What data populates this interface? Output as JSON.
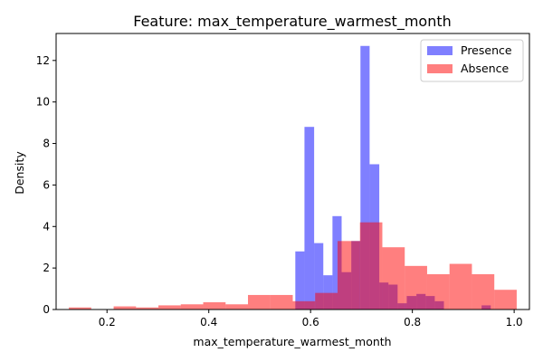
{
  "chart_data": {
    "type": "histogram",
    "title": "Feature: max_temperature_warmest_month",
    "xlabel": "max_temperature_warmest_month",
    "ylabel": "Density",
    "xlim": [
      0.1,
      1.03
    ],
    "ylim": [
      0,
      13.3
    ],
    "xticks": [
      "0.2",
      "0.4",
      "0.6",
      "0.8",
      "1.0"
    ],
    "xtick_values": [
      0.2,
      0.4,
      0.6,
      0.8,
      1.0
    ],
    "yticks": [
      "0",
      "2",
      "4",
      "6",
      "8",
      "10",
      "12"
    ],
    "ytick_values": [
      0,
      2,
      4,
      6,
      8,
      10,
      12
    ],
    "grid": false,
    "legend_position": "top-right",
    "series": [
      {
        "name": "Presence",
        "color": "#0000ff",
        "alpha": 0.5,
        "bins": [
          [
            0.57,
            0.588,
            2.8
          ],
          [
            0.588,
            0.607,
            8.8
          ],
          [
            0.607,
            0.625,
            3.2
          ],
          [
            0.625,
            0.643,
            1.65
          ],
          [
            0.643,
            0.661,
            4.5
          ],
          [
            0.661,
            0.68,
            1.8
          ],
          [
            0.68,
            0.698,
            3.3
          ],
          [
            0.698,
            0.716,
            12.7
          ],
          [
            0.716,
            0.735,
            7.0
          ],
          [
            0.735,
            0.753,
            1.3
          ],
          [
            0.753,
            0.771,
            1.2
          ],
          [
            0.771,
            0.789,
            0.3
          ],
          [
            0.789,
            0.808,
            0.65
          ],
          [
            0.808,
            0.826,
            0.75
          ],
          [
            0.826,
            0.844,
            0.65
          ],
          [
            0.844,
            0.862,
            0.4
          ],
          [
            0.936,
            0.954,
            0.2
          ]
        ]
      },
      {
        "name": "Absence",
        "color": "#ff0000",
        "alpha": 0.5,
        "bins": [
          [
            0.125,
            0.169,
            0.1
          ],
          [
            0.213,
            0.257,
            0.15
          ],
          [
            0.257,
            0.301,
            0.1
          ],
          [
            0.301,
            0.345,
            0.2
          ],
          [
            0.345,
            0.389,
            0.25
          ],
          [
            0.389,
            0.433,
            0.35
          ],
          [
            0.433,
            0.477,
            0.25
          ],
          [
            0.477,
            0.521,
            0.7
          ],
          [
            0.521,
            0.565,
            0.7
          ],
          [
            0.565,
            0.609,
            0.4
          ],
          [
            0.609,
            0.653,
            0.8
          ],
          [
            0.653,
            0.697,
            3.3
          ],
          [
            0.697,
            0.741,
            4.2
          ],
          [
            0.741,
            0.785,
            3.0
          ],
          [
            0.785,
            0.829,
            2.1
          ],
          [
            0.829,
            0.873,
            1.7
          ],
          [
            0.873,
            0.917,
            2.2
          ],
          [
            0.917,
            0.961,
            1.7
          ],
          [
            0.961,
            1.005,
            0.95
          ]
        ]
      }
    ]
  }
}
